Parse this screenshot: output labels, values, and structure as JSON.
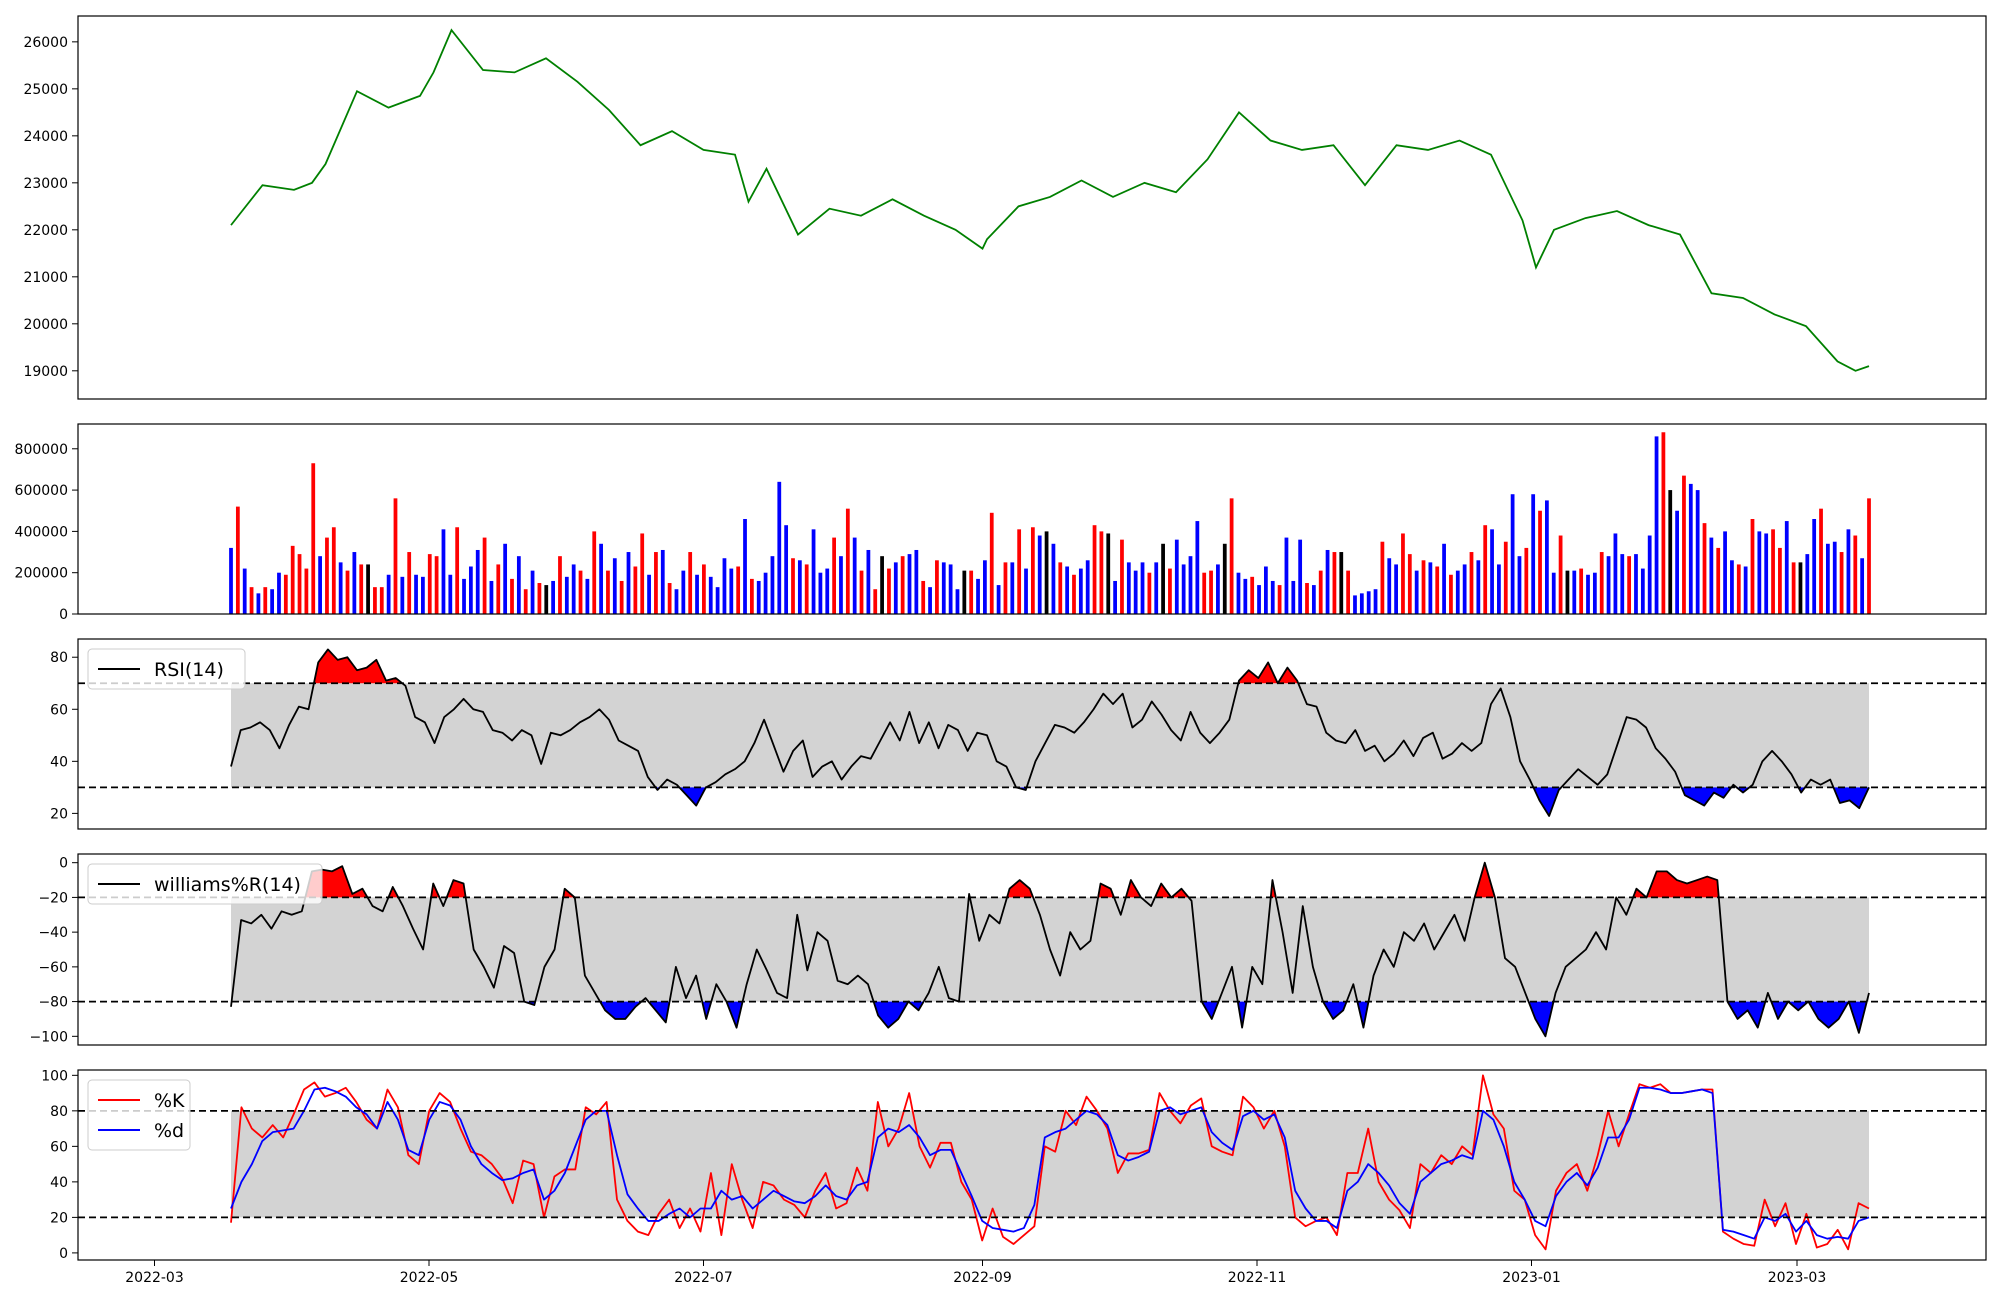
{
  "colors": {
    "price_line": "#008000",
    "volume_up": "#ff0000",
    "volume_down": "#0000ff",
    "volume_flat": "#000000",
    "band_fill": "#d3d3d3",
    "overbought_fill": "#ff0000",
    "oversold_fill": "#0000ff",
    "indicator_line": "#000000",
    "k_line": "#ff0000",
    "d_line": "#0000ff"
  },
  "x_axis": {
    "date_ticks": [
      "2022-03",
      "2022-05",
      "2022-07",
      "2022-09",
      "2022-11",
      "2023-01",
      "2023-03"
    ]
  },
  "chart_data": [
    {
      "type": "line",
      "id": "price",
      "x": [
        "2022-03-18",
        "2022-03-25",
        "2022-04-01",
        "2022-04-05",
        "2022-04-08",
        "2022-04-15",
        "2022-04-22",
        "2022-04-29",
        "2022-05-02",
        "2022-05-06",
        "2022-05-13",
        "2022-05-20",
        "2022-05-27",
        "2022-06-03",
        "2022-06-10",
        "2022-06-17",
        "2022-06-24",
        "2022-07-01",
        "2022-07-08",
        "2022-07-11",
        "2022-07-15",
        "2022-07-22",
        "2022-07-29",
        "2022-08-05",
        "2022-08-12",
        "2022-08-19",
        "2022-08-26",
        "2022-09-01",
        "2022-09-02",
        "2022-09-09",
        "2022-09-16",
        "2022-09-23",
        "2022-09-30",
        "2022-10-07",
        "2022-10-14",
        "2022-10-21",
        "2022-10-28",
        "2022-11-04",
        "2022-11-11",
        "2022-11-18",
        "2022-11-25",
        "2022-12-02",
        "2022-12-09",
        "2022-12-16",
        "2022-12-23",
        "2022-12-30",
        "2023-01-02",
        "2023-01-06",
        "2023-01-13",
        "2023-01-20",
        "2023-01-27",
        "2023-02-03",
        "2023-02-10",
        "2023-02-17",
        "2023-02-24",
        "2023-03-03",
        "2023-03-10",
        "2023-03-14",
        "2023-03-17"
      ],
      "y": [
        22100,
        22950,
        22850,
        23000,
        23400,
        24950,
        24600,
        24850,
        25350,
        26250,
        25400,
        25350,
        25650,
        25150,
        24550,
        23800,
        24100,
        23700,
        23600,
        22600,
        23300,
        21900,
        22450,
        22300,
        22650,
        22300,
        22000,
        21600,
        21800,
        22500,
        22700,
        23050,
        22700,
        23000,
        22800,
        23500,
        24500,
        23900,
        23700,
        23800,
        22950,
        23800,
        23700,
        23900,
        23600,
        22200,
        21200,
        22000,
        22250,
        22400,
        22100,
        21900,
        20650,
        20550,
        20200,
        19950,
        19200,
        19000,
        19100
      ],
      "ylim": [
        18400,
        26550
      ],
      "yticks": [
        19000,
        20000,
        21000,
        22000,
        23000,
        24000,
        25000,
        26000
      ]
    },
    {
      "type": "bar",
      "id": "volume",
      "x_start": "2022-03-18",
      "x_end": "2023-03-17",
      "values": [
        320000,
        520000,
        220000,
        130000,
        100000,
        130000,
        120000,
        200000,
        190000,
        330000,
        290000,
        220000,
        730000,
        280000,
        370000,
        420000,
        250000,
        210000,
        300000,
        240000,
        240000,
        130000,
        130000,
        190000,
        560000,
        180000,
        300000,
        190000,
        180000,
        290000,
        280000,
        410000,
        190000,
        420000,
        170000,
        230000,
        310000,
        370000,
        160000,
        240000,
        340000,
        170000,
        280000,
        120000,
        210000,
        150000,
        140000,
        160000,
        280000,
        180000,
        240000,
        210000,
        170000,
        400000,
        340000,
        210000,
        270000,
        160000,
        300000,
        230000,
        390000,
        190000,
        300000,
        310000,
        150000,
        120000,
        210000,
        300000,
        190000,
        240000,
        180000,
        130000,
        270000,
        220000,
        230000,
        460000,
        170000,
        160000,
        200000,
        280000,
        640000,
        430000,
        270000,
        260000,
        240000,
        410000,
        200000,
        220000,
        370000,
        280000,
        510000,
        370000,
        210000,
        310000,
        120000,
        280000,
        220000,
        250000,
        280000,
        290000,
        310000,
        160000,
        130000,
        260000,
        250000,
        240000,
        120000,
        210000,
        210000,
        170000,
        260000,
        490000,
        140000,
        250000,
        250000,
        410000,
        220000,
        420000,
        380000,
        400000,
        340000,
        250000,
        230000,
        190000,
        220000,
        260000,
        430000,
        400000,
        390000,
        160000,
        360000,
        250000,
        210000,
        250000,
        200000,
        250000,
        340000,
        220000,
        360000,
        240000,
        280000,
        450000,
        200000,
        210000,
        240000,
        340000,
        560000,
        200000,
        170000,
        180000,
        140000,
        230000,
        160000,
        140000,
        370000,
        160000,
        360000,
        150000,
        140000,
        210000,
        310000,
        300000,
        300000,
        210000,
        90000,
        100000,
        110000,
        120000,
        350000,
        270000,
        240000,
        390000,
        290000,
        210000,
        260000,
        250000,
        230000,
        340000,
        190000,
        210000,
        240000,
        300000,
        260000,
        430000,
        410000,
        240000,
        350000,
        580000,
        280000,
        320000,
        580000,
        500000,
        550000,
        200000,
        380000,
        210000,
        210000,
        220000,
        190000,
        200000,
        300000,
        280000,
        390000,
        290000,
        280000,
        290000,
        220000,
        380000,
        860000,
        880000,
        600000,
        500000,
        670000,
        630000,
        600000,
        440000,
        370000,
        320000,
        400000,
        260000,
        240000,
        230000,
        460000,
        400000,
        390000,
        410000,
        320000,
        450000,
        250000,
        250000,
        290000,
        460000,
        510000,
        340000,
        350000,
        300000,
        410000,
        380000,
        270000,
        560000
      ],
      "up_indices": [
        1,
        3,
        5,
        8,
        9,
        10,
        11,
        12,
        14,
        15,
        17,
        19,
        21,
        22,
        24,
        26,
        29,
        30,
        33,
        37,
        39,
        41,
        43,
        45,
        48,
        51,
        53,
        55,
        57,
        59,
        60,
        62,
        64,
        67,
        69,
        74,
        76,
        82,
        84,
        88,
        90,
        92,
        94,
        96,
        98,
        101,
        103,
        108,
        111,
        113,
        115,
        117,
        121,
        123,
        126,
        127,
        130,
        134,
        137,
        142,
        143,
        146,
        149,
        153,
        157,
        159,
        161,
        163,
        168,
        171,
        172,
        174,
        176,
        178,
        181,
        183,
        186,
        189,
        191,
        194,
        197,
        200,
        204,
        209,
        212,
        215,
        217,
        220,
        222,
        225,
        226,
        228,
        232,
        235,
        237,
        239,
        242,
        244,
        248,
        251,
        253,
        256
      ],
      "flat_indices": [
        20,
        46,
        95,
        107,
        119,
        128,
        136,
        145,
        162,
        195,
        210,
        229
      ],
      "ylim": [
        0,
        920000
      ],
      "yticks": [
        0,
        200000,
        400000,
        600000,
        800000
      ],
      "ytick_labels": [
        "0",
        "200000",
        "400000",
        "600000",
        "800000"
      ]
    },
    {
      "type": "line",
      "id": "rsi",
      "series": [
        {
          "name": "RSI(14)"
        }
      ],
      "x_start": "2022-03-18",
      "x_end": "2023-03-17",
      "y": [
        38,
        52,
        53,
        55,
        52,
        45,
        54,
        61,
        60,
        78,
        83,
        79,
        80,
        75,
        76,
        79,
        71,
        72,
        69,
        57,
        55,
        47,
        57,
        60,
        64,
        60,
        59,
        52,
        51,
        48,
        52,
        50,
        39,
        51,
        50,
        52,
        55,
        57,
        60,
        56,
        48,
        46,
        44,
        34,
        29,
        33,
        31,
        27,
        23,
        30,
        32,
        35,
        37,
        40,
        47,
        56,
        46,
        36,
        44,
        48,
        34,
        38,
        40,
        33,
        38,
        42,
        41,
        48,
        55,
        48,
        59,
        47,
        55,
        45,
        54,
        52,
        44,
        51,
        50,
        40,
        38,
        30,
        29,
        40,
        47,
        54,
        53,
        51,
        55,
        60,
        66,
        62,
        66,
        53,
        56,
        63,
        58,
        52,
        48,
        59,
        51,
        47,
        51,
        56,
        71,
        75,
        72,
        78,
        70,
        76,
        71,
        62,
        61,
        51,
        48,
        47,
        52,
        44,
        46,
        40,
        43,
        48,
        42,
        49,
        51,
        41,
        43,
        47,
        44,
        47,
        62,
        68,
        57,
        40,
        33,
        25,
        19,
        29,
        33,
        37,
        34,
        31,
        35,
        46,
        57,
        56,
        53,
        45,
        41,
        36,
        27,
        25,
        23,
        28,
        26,
        31,
        28,
        31,
        40,
        44,
        40,
        35,
        28,
        33,
        31,
        33,
        24,
        25,
        22,
        30
      ],
      "overbought": 70,
      "oversold": 30,
      "ylim": [
        14,
        87
      ],
      "yticks": [
        20,
        40,
        60,
        80
      ]
    },
    {
      "type": "line",
      "id": "williams_r",
      "series": [
        {
          "name": "williams%R(14)"
        }
      ],
      "x_start": "2022-03-18",
      "x_end": "2023-03-17",
      "y": [
        -83,
        -33,
        -35,
        -30,
        -38,
        -28,
        -30,
        -28,
        -5,
        -4,
        -5,
        -2,
        -18,
        -15,
        -25,
        -28,
        -14,
        -25,
        -38,
        -50,
        -12,
        -25,
        -10,
        -12,
        -50,
        -60,
        -72,
        -48,
        -52,
        -80,
        -82,
        -60,
        -50,
        -15,
        -20,
        -65,
        -75,
        -85,
        -90,
        -90,
        -83,
        -78,
        -85,
        -92,
        -60,
        -78,
        -65,
        -90,
        -70,
        -80,
        -95,
        -70,
        -50,
        -62,
        -75,
        -78,
        -30,
        -62,
        -40,
        -45,
        -68,
        -70,
        -65,
        -70,
        -88,
        -95,
        -90,
        -80,
        -85,
        -75,
        -60,
        -78,
        -80,
        -18,
        -45,
        -30,
        -35,
        -15,
        -10,
        -15,
        -30,
        -50,
        -65,
        -40,
        -50,
        -45,
        -12,
        -15,
        -30,
        -10,
        -20,
        -25,
        -12,
        -20,
        -15,
        -22,
        -80,
        -90,
        -75,
        -60,
        -95,
        -60,
        -70,
        -10,
        -40,
        -75,
        -25,
        -60,
        -80,
        -90,
        -85,
        -70,
        -95,
        -65,
        -50,
        -60,
        -40,
        -45,
        -35,
        -50,
        -40,
        -30,
        -45,
        -20,
        0,
        -20,
        -55,
        -60,
        -75,
        -90,
        -100,
        -75,
        -60,
        -55,
        -50,
        -40,
        -50,
        -20,
        -30,
        -15,
        -20,
        -5,
        -5,
        -10,
        -12,
        -10,
        -8,
        -10,
        -80,
        -90,
        -85,
        -95,
        -75,
        -90,
        -80,
        -85,
        -80,
        -90,
        -95,
        -90,
        -80,
        -98,
        -75
      ],
      "overbought": -20,
      "oversold": -80,
      "ylim": [
        -105,
        5
      ],
      "yticks": [
        0,
        -20,
        -40,
        -60,
        -80,
        -100
      ],
      "ytick_labels": [
        "0",
        "−20",
        "−40",
        "−60",
        "−80",
        "−100"
      ]
    },
    {
      "type": "line",
      "id": "stochastic",
      "series": [
        {
          "name": "%K",
          "values": [
            17,
            82,
            70,
            65,
            72,
            65,
            78,
            92,
            96,
            88,
            90,
            93,
            85,
            75,
            70,
            92,
            82,
            55,
            50,
            80,
            90,
            85,
            70,
            57,
            55,
            50,
            42,
            28,
            52,
            50,
            20,
            43,
            47,
            47,
            82,
            78,
            85,
            30,
            18,
            12,
            10,
            22,
            30,
            14,
            25,
            12,
            45,
            10,
            50,
            30,
            14,
            40,
            38,
            30,
            27,
            20,
            35,
            45,
            25,
            28,
            48,
            35,
            85,
            60,
            70,
            90,
            60,
            48,
            62,
            62,
            40,
            30,
            7,
            25,
            9,
            5,
            10,
            15,
            60,
            57,
            80,
            72,
            88,
            80,
            70,
            45,
            56,
            56,
            58,
            90,
            80,
            73,
            83,
            87,
            60,
            57,
            55,
            88,
            82,
            70,
            80,
            60,
            20,
            15,
            18,
            20,
            10,
            45,
            45,
            70,
            40,
            30,
            24,
            14,
            50,
            45,
            55,
            50,
            60,
            55,
            100,
            78,
            70,
            35,
            30,
            10,
            2,
            35,
            45,
            50,
            35,
            55,
            80,
            60,
            78,
            95,
            93,
            95,
            90,
            90,
            91,
            92,
            92,
            12,
            8,
            5,
            4,
            30,
            15,
            28,
            5,
            22,
            3,
            5,
            13,
            2,
            28,
            25
          ],
          "color": "#ff0000"
        },
        {
          "name": "%d",
          "values": [
            25,
            40,
            50,
            63,
            68,
            69,
            70,
            80,
            92,
            93,
            91,
            88,
            82,
            78,
            70,
            85,
            75,
            58,
            55,
            75,
            85,
            83,
            75,
            60,
            50,
            45,
            41,
            42,
            45,
            47,
            30,
            35,
            45,
            60,
            75,
            80,
            80,
            55,
            33,
            25,
            18,
            18,
            22,
            25,
            20,
            25,
            25,
            35,
            30,
            32,
            25,
            30,
            35,
            32,
            29,
            28,
            32,
            38,
            32,
            30,
            38,
            40,
            65,
            70,
            68,
            72,
            65,
            55,
            58,
            58,
            45,
            32,
            18,
            14,
            13,
            12,
            14,
            27,
            65,
            68,
            70,
            75,
            80,
            78,
            72,
            55,
            52,
            54,
            57,
            80,
            82,
            78,
            80,
            82,
            68,
            62,
            58,
            77,
            80,
            75,
            78,
            65,
            35,
            25,
            18,
            18,
            14,
            35,
            40,
            50,
            45,
            38,
            28,
            22,
            40,
            45,
            50,
            52,
            55,
            53,
            80,
            75,
            60,
            40,
            30,
            18,
            15,
            32,
            40,
            45,
            38,
            48,
            65,
            65,
            75,
            93,
            93,
            92,
            90,
            90,
            91,
            92,
            90,
            13,
            12,
            10,
            8,
            20,
            18,
            22,
            12,
            18,
            10,
            8,
            9,
            8,
            18,
            20
          ],
          "color": "#0000ff"
        }
      ],
      "x_start": "2022-03-18",
      "x_end": "2023-03-17",
      "overbought": 80,
      "oversold": 20,
      "ylim": [
        -4,
        103
      ],
      "yticks": [
        0,
        20,
        40,
        60,
        80,
        100
      ]
    }
  ]
}
